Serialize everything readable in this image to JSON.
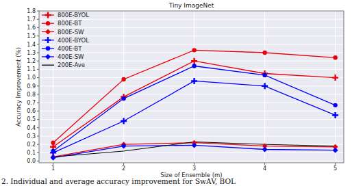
{
  "chart_data": {
    "type": "line",
    "title": "Tiny ImageNet",
    "x_label": "Size of Ensemble (m)",
    "y_label": "Accuracy Improvement (%)",
    "caption": "2. Individual and average accuracy improvement for SwAV, BOL",
    "x": [
      1,
      2,
      3,
      4,
      5
    ],
    "xlim": [
      0.8,
      5.12
    ],
    "xticks": [
      1,
      2,
      3,
      4,
      5
    ],
    "ylim": [
      -0.02,
      1.8
    ],
    "yticks": [
      {
        "value": 0,
        "label": "0.0"
      },
      {
        "value": 0.1,
        "label": "0.1"
      },
      {
        "value": 0.2,
        "label": "0.2"
      },
      {
        "value": 0.3,
        "label": "0.3"
      },
      {
        "value": 0.4,
        "label": "0.4"
      },
      {
        "value": 0.5,
        "label": "0.5"
      },
      {
        "value": 0.6,
        "label": "0.6"
      },
      {
        "value": 0.7,
        "label": "0.7"
      },
      {
        "value": 0.8,
        "label": "0.8"
      },
      {
        "value": 0.9,
        "label": "0.9"
      },
      {
        "value": 1,
        "label": "1.0"
      },
      {
        "value": 1.1,
        "label": "1.1"
      },
      {
        "value": 1.2,
        "label": "1.2"
      },
      {
        "value": 1.3,
        "label": "1.3"
      },
      {
        "value": 1.4,
        "label": "1.4"
      },
      {
        "value": 1.5,
        "label": "1.5"
      },
      {
        "value": 1.6,
        "label": "1.6"
      },
      {
        "value": 1.7,
        "label": "1.7"
      },
      {
        "value": 1.8,
        "label": "1.8"
      }
    ],
    "grid": true,
    "legend": "upper left",
    "series": [
      {
        "name": "800E-BYOL",
        "color": "#e8000b",
        "marker": "plus",
        "values": [
          0.17,
          0.77,
          1.2,
          1.05,
          1.0
        ]
      },
      {
        "name": "800E-BT",
        "color": "#e8000b",
        "marker": "circle",
        "values": [
          0.22,
          0.98,
          1.33,
          1.3,
          1.24
        ]
      },
      {
        "name": "800E-SW",
        "color": "#e8000b",
        "marker": "diamond",
        "values": [
          0.05,
          0.2,
          0.22,
          0.18,
          0.17
        ]
      },
      {
        "name": "400E-BYOL",
        "color": "#0000ff",
        "marker": "plus",
        "values": [
          0.1,
          0.48,
          0.96,
          0.9,
          0.55
        ]
      },
      {
        "name": "400E-BT",
        "color": "#0000ff",
        "marker": "circle",
        "values": [
          0.12,
          0.75,
          1.14,
          1.03,
          0.67
        ]
      },
      {
        "name": "400E-SW",
        "color": "#0000ff",
        "marker": "diamond",
        "values": [
          0.04,
          0.18,
          0.19,
          0.14,
          0.13
        ]
      },
      {
        "name": "200E-Ave",
        "color": "#000000",
        "marker": "none",
        "values": [
          0.05,
          0.12,
          0.23,
          0.2,
          0.18
        ]
      }
    ]
  }
}
